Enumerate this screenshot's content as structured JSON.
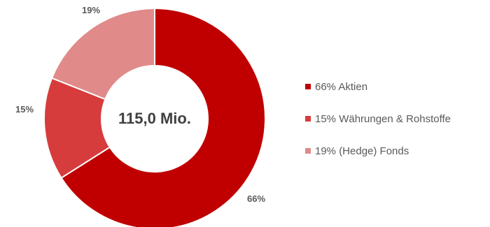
{
  "chart_data": {
    "type": "pie",
    "variant": "donut",
    "center_label": "115,0 Mio.",
    "slices": [
      {
        "value": 66,
        "data_label": "66%",
        "legend": "66% Aktien",
        "color": "#c00000"
      },
      {
        "value": 15,
        "data_label": "15%",
        "legend": "15% Währungen & Rohstoffe",
        "color": "#d63c3c"
      },
      {
        "value": 19,
        "data_label": "19%",
        "legend": "19% (Hedge) Fonds",
        "color": "#e08a8a"
      }
    ],
    "legend_position": "right"
  }
}
